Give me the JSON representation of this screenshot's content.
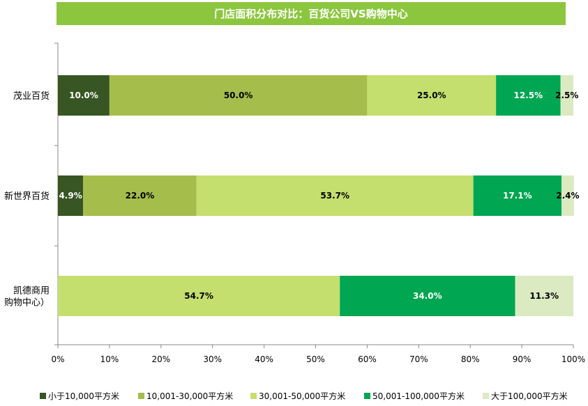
{
  "chart_data": {
    "type": "bar",
    "orientation": "horizontal",
    "stacked": "percent",
    "title": "门店面积分布对比：百货公司VS购物中心",
    "categories": [
      "茂业百货",
      "新世界百货",
      "凯德商用购物中心）"
    ],
    "category_lines": [
      [
        "茂业百货"
      ],
      [
        "新世界百货"
      ],
      [
        "凯德商用",
        "购物中心）"
      ]
    ],
    "series": [
      {
        "name": "小于10,000平方米",
        "color": "#375623",
        "text_color": "#ffffff",
        "values": [
          10.0,
          4.9,
          0
        ],
        "labels": [
          "10.0%",
          "4.9%",
          ""
        ]
      },
      {
        "name": "10,001-30,000平方米",
        "color": "#a5bd4b",
        "text_color": "#000000",
        "values": [
          50.0,
          22.0,
          0
        ],
        "labels": [
          "50.0%",
          "22.0%",
          ""
        ]
      },
      {
        "name": "30,001-50,000平方米",
        "color": "#c4df6e",
        "text_color": "#000000",
        "values": [
          25.0,
          53.7,
          54.7
        ],
        "labels": [
          "25.0%",
          "53.7%",
          "54.7%"
        ]
      },
      {
        "name": "50,001-100,000平方米",
        "color": "#00a651",
        "text_color": "#ffffff",
        "values": [
          12.5,
          17.1,
          34.0
        ],
        "labels": [
          "12.5%",
          "17.1%",
          "34.0%"
        ]
      },
      {
        "name": "大于100,000平方米",
        "color": "#dbeac0",
        "text_color": "#000000",
        "values": [
          2.5,
          2.4,
          11.3
        ],
        "labels": [
          "2.5%",
          "2.4%",
          "11.3%"
        ]
      }
    ],
    "x_ticks": [
      "0%",
      "10%",
      "20%",
      "30%",
      "40%",
      "50%",
      "60%",
      "70%",
      "80%",
      "90%",
      "100%"
    ],
    "xlim": [
      0,
      100
    ],
    "grid": false,
    "legend_position": "bottom"
  }
}
